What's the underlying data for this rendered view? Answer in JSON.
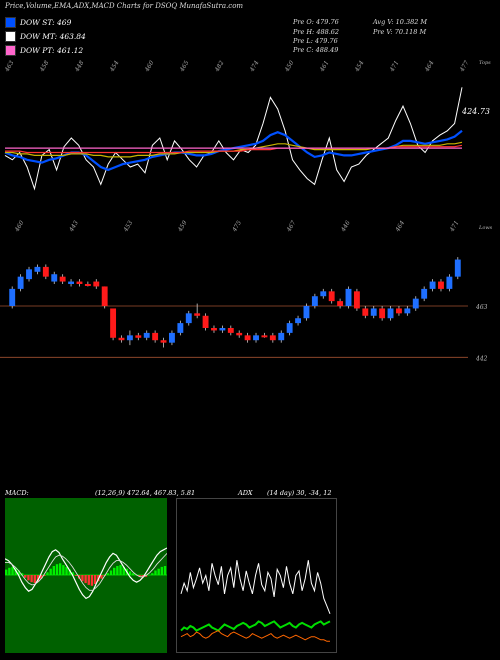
{
  "header": {
    "title": "Price,Volume,EMA,ADX,MACD Charts for DSOQ MunafaSutra.com"
  },
  "legend": [
    {
      "label": "DOW ST: 469",
      "color": "#0050ff"
    },
    {
      "label": "DOW MT: 463.84",
      "color": "#ffffff"
    },
    {
      "label": "DOW PT: 461.12",
      "color": "#ff66cc"
    }
  ],
  "stats": {
    "prev_open": "Pre   O: 479.76",
    "prev_high": "Pre   H: 488.62",
    "prev_low": "Pre   L: 479.76",
    "prev_close": "Pre   C: 488.49",
    "avg_volume": "Avg V: 10.382  M",
    "prev_volume": "Pre   V: 70.118  M"
  },
  "chart_data": [
    {
      "type": "line",
      "panel": "ema",
      "top_tick_labels": [
        "463",
        "458",
        "448",
        "454",
        "460",
        "465",
        "482",
        "474",
        "450",
        "461",
        "454",
        "471",
        "464",
        "477"
      ],
      "bottom_tick_labels": [
        "460",
        "443",
        "453",
        "459",
        "475",
        "467",
        "446",
        "464",
        "471"
      ],
      "top_corner_label": "Tops",
      "bottom_corner_label": "Lows",
      "last_value_label": "424.73",
      "series": [
        {
          "color": "#ffffff",
          "values": [
            0.52,
            0.55,
            0.5,
            0.6,
            0.75,
            0.52,
            0.48,
            0.62,
            0.46,
            0.4,
            0.45,
            0.55,
            0.6,
            0.72,
            0.58,
            0.5,
            0.55,
            0.6,
            0.58,
            0.64,
            0.45,
            0.4,
            0.55,
            0.42,
            0.48,
            0.55,
            0.6,
            0.52,
            0.5,
            0.42,
            0.5,
            0.55,
            0.48,
            0.5,
            0.45,
            0.3,
            0.12,
            0.2,
            0.35,
            0.55,
            0.62,
            0.68,
            0.72,
            0.55,
            0.4,
            0.62,
            0.7,
            0.6,
            0.58,
            0.52,
            0.48,
            0.44,
            0.4,
            0.28,
            0.18,
            0.3,
            0.45,
            0.5,
            0.42,
            0.38,
            0.35,
            0.3,
            0.05
          ]
        },
        {
          "color": "#0050ff",
          "values": [
            0.5,
            0.52,
            0.53,
            0.55,
            0.56,
            0.57,
            0.55,
            0.54,
            0.52,
            0.5,
            0.5,
            0.52,
            0.56,
            0.6,
            0.62,
            0.6,
            0.58,
            0.57,
            0.56,
            0.55,
            0.53,
            0.52,
            0.51,
            0.5,
            0.5,
            0.51,
            0.52,
            0.52,
            0.51,
            0.49,
            0.48,
            0.47,
            0.46,
            0.45,
            0.44,
            0.42,
            0.38,
            0.36,
            0.38,
            0.42,
            0.46,
            0.5,
            0.53,
            0.52,
            0.5,
            0.51,
            0.52,
            0.52,
            0.51,
            0.5,
            0.49,
            0.48,
            0.47,
            0.45,
            0.42,
            0.42,
            0.43,
            0.44,
            0.43,
            0.42,
            0.41,
            0.39,
            0.35
          ]
        },
        {
          "color": "#c8b400",
          "values": [
            0.5,
            0.5,
            0.51,
            0.51,
            0.52,
            0.52,
            0.52,
            0.52,
            0.52,
            0.51,
            0.51,
            0.51,
            0.52,
            0.52,
            0.53,
            0.53,
            0.53,
            0.53,
            0.52,
            0.52,
            0.52,
            0.51,
            0.51,
            0.51,
            0.5,
            0.5,
            0.5,
            0.5,
            0.5,
            0.49,
            0.49,
            0.49,
            0.48,
            0.48,
            0.47,
            0.46,
            0.45,
            0.44,
            0.44,
            0.45,
            0.46,
            0.47,
            0.48,
            0.48,
            0.48,
            0.48,
            0.48,
            0.48,
            0.48,
            0.48,
            0.47,
            0.47,
            0.47,
            0.46,
            0.45,
            0.45,
            0.45,
            0.45,
            0.45,
            0.45,
            0.44,
            0.44,
            0.43
          ]
        },
        {
          "color": "#ff3333",
          "values": [
            0.49,
            0.49,
            0.49,
            0.5,
            0.5,
            0.5,
            0.5,
            0.5,
            0.5,
            0.5,
            0.5,
            0.5,
            0.5,
            0.5,
            0.5,
            0.5,
            0.5,
            0.5,
            0.5,
            0.5,
            0.5,
            0.5,
            0.5,
            0.5,
            0.5,
            0.49,
            0.49,
            0.49,
            0.49,
            0.49,
            0.49,
            0.49,
            0.49,
            0.48,
            0.48,
            0.48,
            0.48,
            0.47,
            0.47,
            0.47,
            0.47,
            0.47,
            0.47,
            0.47,
            0.47,
            0.47,
            0.47,
            0.47,
            0.47,
            0.47,
            0.47,
            0.47,
            0.47,
            0.46,
            0.46,
            0.46,
            0.46,
            0.46,
            0.46,
            0.46,
            0.46,
            0.46,
            0.45
          ]
        },
        {
          "color": "#ff66cc",
          "values": [
            0.47,
            0.47,
            0.47,
            0.47,
            0.47,
            0.47,
            0.47,
            0.47,
            0.47,
            0.47,
            0.47,
            0.47,
            0.47,
            0.47,
            0.47,
            0.47,
            0.47,
            0.47,
            0.47,
            0.47,
            0.47,
            0.47,
            0.47,
            0.47,
            0.47,
            0.47,
            0.47,
            0.47,
            0.47,
            0.47,
            0.47,
            0.47,
            0.47,
            0.47,
            0.47,
            0.47,
            0.47,
            0.47,
            0.47,
            0.47,
            0.47,
            0.47,
            0.47,
            0.47,
            0.47,
            0.47,
            0.47,
            0.47,
            0.47,
            0.47,
            0.47,
            0.47,
            0.47,
            0.47,
            0.47,
            0.47,
            0.47,
            0.47,
            0.47,
            0.47,
            0.47,
            0.47,
            0.47
          ]
        }
      ]
    },
    {
      "type": "candlestick",
      "panel": "price",
      "reference_levels": [
        {
          "value": 463,
          "label": "463"
        },
        {
          "value": 442,
          "label": "442"
        }
      ],
      "candles": [
        {
          "o": 463,
          "c": 470,
          "h": 471,
          "l": 462,
          "color": "blue"
        },
        {
          "o": 470,
          "c": 475,
          "h": 476,
          "l": 469,
          "color": "blue"
        },
        {
          "o": 474,
          "c": 478,
          "h": 479,
          "l": 473,
          "color": "blue"
        },
        {
          "o": 477,
          "c": 479,
          "h": 480,
          "l": 476,
          "color": "blue"
        },
        {
          "o": 479,
          "c": 475,
          "h": 480,
          "l": 474,
          "color": "red"
        },
        {
          "o": 473,
          "c": 476,
          "h": 477,
          "l": 472,
          "color": "blue"
        },
        {
          "o": 475,
          "c": 473,
          "h": 476,
          "l": 472,
          "color": "red"
        },
        {
          "o": 472,
          "c": 473,
          "h": 474,
          "l": 471,
          "color": "blue"
        },
        {
          "o": 473,
          "c": 472,
          "h": 474,
          "l": 471,
          "color": "red"
        },
        {
          "o": 472,
          "c": 472,
          "h": 473,
          "l": 471,
          "color": "red"
        },
        {
          "o": 473,
          "c": 471,
          "h": 474,
          "l": 470,
          "color": "red"
        },
        {
          "o": 471,
          "c": 463,
          "h": 471,
          "l": 462,
          "color": "red"
        },
        {
          "o": 462,
          "c": 450,
          "h": 462,
          "l": 449,
          "color": "red"
        },
        {
          "o": 450,
          "c": 449,
          "h": 451,
          "l": 448,
          "color": "red"
        },
        {
          "o": 449,
          "c": 451,
          "h": 453,
          "l": 447,
          "color": "blue"
        },
        {
          "o": 451,
          "c": 450,
          "h": 452,
          "l": 449,
          "color": "red"
        },
        {
          "o": 450,
          "c": 452,
          "h": 453,
          "l": 449,
          "color": "blue"
        },
        {
          "o": 452,
          "c": 449,
          "h": 453,
          "l": 448,
          "color": "red"
        },
        {
          "o": 449,
          "c": 448,
          "h": 450,
          "l": 446,
          "color": "red"
        },
        {
          "o": 448,
          "c": 452,
          "h": 453,
          "l": 447,
          "color": "blue"
        },
        {
          "o": 452,
          "c": 456,
          "h": 457,
          "l": 451,
          "color": "blue"
        },
        {
          "o": 456,
          "c": 460,
          "h": 461,
          "l": 455,
          "color": "blue"
        },
        {
          "o": 460,
          "c": 459,
          "h": 464,
          "l": 458,
          "color": "red"
        },
        {
          "o": 459,
          "c": 454,
          "h": 460,
          "l": 453,
          "color": "red"
        },
        {
          "o": 454,
          "c": 453,
          "h": 455,
          "l": 452,
          "color": "red"
        },
        {
          "o": 453,
          "c": 454,
          "h": 455,
          "l": 452,
          "color": "blue"
        },
        {
          "o": 454,
          "c": 452,
          "h": 455,
          "l": 451,
          "color": "red"
        },
        {
          "o": 452,
          "c": 451,
          "h": 453,
          "l": 450,
          "color": "red"
        },
        {
          "o": 451,
          "c": 449,
          "h": 452,
          "l": 448,
          "color": "red"
        },
        {
          "o": 449,
          "c": 451,
          "h": 452,
          "l": 448,
          "color": "blue"
        },
        {
          "o": 451,
          "c": 451,
          "h": 452,
          "l": 450,
          "color": "red"
        },
        {
          "o": 451,
          "c": 449,
          "h": 452,
          "l": 448,
          "color": "red"
        },
        {
          "o": 449,
          "c": 452,
          "h": 453,
          "l": 448,
          "color": "blue"
        },
        {
          "o": 452,
          "c": 456,
          "h": 457,
          "l": 451,
          "color": "blue"
        },
        {
          "o": 456,
          "c": 458,
          "h": 459,
          "l": 455,
          "color": "blue"
        },
        {
          "o": 458,
          "c": 463,
          "h": 464,
          "l": 457,
          "color": "blue"
        },
        {
          "o": 463,
          "c": 467,
          "h": 468,
          "l": 462,
          "color": "blue"
        },
        {
          "o": 467,
          "c": 469,
          "h": 470,
          "l": 466,
          "color": "blue"
        },
        {
          "o": 469,
          "c": 465,
          "h": 470,
          "l": 464,
          "color": "red"
        },
        {
          "o": 465,
          "c": 463,
          "h": 466,
          "l": 462,
          "color": "red"
        },
        {
          "o": 463,
          "c": 470,
          "h": 471,
          "l": 462,
          "color": "blue"
        },
        {
          "o": 469,
          "c": 462,
          "h": 470,
          "l": 461,
          "color": "red"
        },
        {
          "o": 462,
          "c": 459,
          "h": 463,
          "l": 458,
          "color": "red"
        },
        {
          "o": 459,
          "c": 462,
          "h": 463,
          "l": 458,
          "color": "blue"
        },
        {
          "o": 462,
          "c": 458,
          "h": 463,
          "l": 457,
          "color": "red"
        },
        {
          "o": 458,
          "c": 462,
          "h": 463,
          "l": 457,
          "color": "blue"
        },
        {
          "o": 462,
          "c": 460,
          "h": 463,
          "l": 459,
          "color": "red"
        },
        {
          "o": 460,
          "c": 462,
          "h": 463,
          "l": 459,
          "color": "blue"
        },
        {
          "o": 462,
          "c": 466,
          "h": 467,
          "l": 461,
          "color": "blue"
        },
        {
          "o": 466,
          "c": 470,
          "h": 471,
          "l": 465,
          "color": "blue"
        },
        {
          "o": 470,
          "c": 473,
          "h": 474,
          "l": 469,
          "color": "blue"
        },
        {
          "o": 473,
          "c": 470,
          "h": 474,
          "l": 469,
          "color": "red"
        },
        {
          "o": 470,
          "c": 475,
          "h": 476,
          "l": 469,
          "color": "blue"
        },
        {
          "o": 475,
          "c": 482,
          "h": 483,
          "l": 474,
          "color": "blue"
        }
      ]
    },
    {
      "type": "bar",
      "panel": "macd",
      "title": "MACD:",
      "values_label": "(12,26,9) 472.64, 467.83, 5.81",
      "histogram": [
        0.6,
        0.8,
        0.9,
        0.8,
        0.5,
        0.2,
        -0.3,
        -0.6,
        -0.8,
        -0.9,
        -0.7,
        -0.4,
        -0.1,
        0.3,
        0.7,
        1.0,
        1.2,
        1.3,
        1.1,
        0.9,
        0.6,
        0.3,
        -0.1,
        -0.4,
        -0.7,
        -0.9,
        -1.1,
        -1.2,
        -1.0,
        -0.7,
        -0.4,
        -0.1,
        0.2,
        0.5,
        0.8,
        1.0,
        1.1,
        0.9,
        0.7,
        0.4,
        0.2,
        0.0,
        -0.2,
        -0.3,
        -0.2,
        0.0,
        0.2,
        0.5,
        0.7,
        0.9,
        1.0
      ],
      "line_macd": [
        1.8,
        1.6,
        1.2,
        0.6,
        0.0,
        -0.8,
        -1.4,
        -1.8,
        -1.6,
        -1.0,
        -0.4,
        0.4,
        1.2,
        2.0,
        2.6,
        2.8,
        2.5,
        1.8,
        1.2,
        0.6,
        0.0,
        -0.8,
        -1.6,
        -2.2,
        -2.6,
        -2.4,
        -1.8,
        -1.0,
        -0.2,
        0.6,
        1.4,
        2.0,
        2.4,
        2.2,
        1.6,
        1.0,
        0.4,
        -0.2,
        -0.6,
        -0.8,
        -0.6,
        -0.2,
        0.4,
        1.0,
        1.6,
        2.2,
        2.6,
        2.8,
        3.0
      ],
      "line_signal": [
        1.4,
        1.4,
        1.2,
        0.9,
        0.5,
        0.0,
        -0.5,
        -0.9,
        -1.1,
        -1.0,
        -0.7,
        -0.3,
        0.3,
        0.9,
        1.5,
        2.0,
        2.2,
        2.1,
        1.8,
        1.4,
        0.9,
        0.3,
        -0.3,
        -0.9,
        -1.4,
        -1.7,
        -1.7,
        -1.4,
        -1.0,
        -0.4,
        0.2,
        0.8,
        1.3,
        1.6,
        1.6,
        1.4,
        1.1,
        0.7,
        0.3,
        0.0,
        -0.2,
        -0.2,
        0.0,
        0.3,
        0.7,
        1.2,
        1.6,
        2.0,
        2.4
      ]
    },
    {
      "type": "line",
      "panel": "adx",
      "title": "ADX",
      "values_label": "(14 day) 30, -34, 12",
      "series": [
        {
          "color": "#ffffff",
          "values": [
            0.62,
            0.55,
            0.6,
            0.48,
            0.58,
            0.52,
            0.45,
            0.55,
            0.5,
            0.6,
            0.42,
            0.5,
            0.56,
            0.44,
            0.62,
            0.5,
            0.45,
            0.58,
            0.4,
            0.52,
            0.6,
            0.47,
            0.55,
            0.62,
            0.5,
            0.42,
            0.56,
            0.6,
            0.48,
            0.52,
            0.64,
            0.46,
            0.5,
            0.58,
            0.44,
            0.55,
            0.62,
            0.5,
            0.47,
            0.6,
            0.52,
            0.4,
            0.55,
            0.6,
            0.48,
            0.55,
            0.65,
            0.7,
            0.75
          ]
        },
        {
          "color": "#00dd00",
          "values": [
            0.86,
            0.84,
            0.85,
            0.83,
            0.84,
            0.86,
            0.85,
            0.84,
            0.83,
            0.82,
            0.84,
            0.85,
            0.86,
            0.84,
            0.82,
            0.83,
            0.84,
            0.85,
            0.83,
            0.82,
            0.81,
            0.82,
            0.84,
            0.83,
            0.82,
            0.8,
            0.81,
            0.83,
            0.82,
            0.81,
            0.8,
            0.82,
            0.84,
            0.83,
            0.82,
            0.81,
            0.83,
            0.84,
            0.82,
            0.81,
            0.82,
            0.83,
            0.84,
            0.82,
            0.81,
            0.8,
            0.82,
            0.81,
            0.8
          ]
        },
        {
          "color": "#ff6600",
          "values": [
            0.9,
            0.89,
            0.88,
            0.9,
            0.89,
            0.87,
            0.88,
            0.9,
            0.91,
            0.9,
            0.88,
            0.87,
            0.86,
            0.88,
            0.89,
            0.9,
            0.88,
            0.87,
            0.88,
            0.89,
            0.9,
            0.91,
            0.9,
            0.88,
            0.89,
            0.9,
            0.91,
            0.9,
            0.89,
            0.88,
            0.9,
            0.91,
            0.9,
            0.89,
            0.9,
            0.91,
            0.9,
            0.89,
            0.9,
            0.91,
            0.92,
            0.91,
            0.9,
            0.9,
            0.91,
            0.92,
            0.92,
            0.93,
            0.93
          ]
        }
      ]
    }
  ]
}
